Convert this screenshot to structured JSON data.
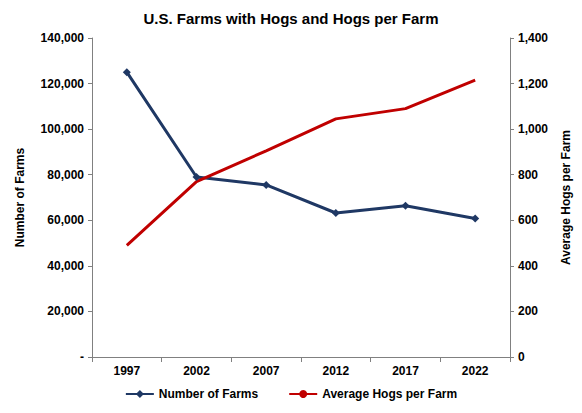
{
  "chart_data": {
    "type": "line",
    "title": "U.S. Farms with Hogs and Hogs per Farm",
    "y_label": "Number of Farms",
    "y2_label": "Average Hogs per Farm",
    "categories": [
      "1997",
      "2002",
      "2007",
      "2012",
      "2017",
      "2022"
    ],
    "series": [
      {
        "name": "Number of Farms",
        "color": "#1F3864",
        "marker": "diamond",
        "line_style": "solid",
        "values": [
          125000,
          79000,
          75500,
          63200,
          66400,
          60800
        ]
      },
      {
        "name": "Average Hogs per Farm",
        "color": "#C00000",
        "marker": "none",
        "line_style": "solid",
        "axis": "y2",
        "values": [
          490,
          770,
          905,
          1045,
          1090,
          1215
        ]
      }
    ],
    "ylim": [
      0,
      140000
    ],
    "yticks": [
      {
        "value": 0,
        "label": "-"
      },
      {
        "value": 20000,
        "label": "20,000"
      },
      {
        "value": 40000,
        "label": "40,000"
      },
      {
        "value": 60000,
        "label": "60,000"
      },
      {
        "value": 80000,
        "label": "80,000"
      },
      {
        "value": 100000,
        "label": "100,000"
      },
      {
        "value": 120000,
        "label": "120,000"
      },
      {
        "value": 140000,
        "label": "140,000"
      }
    ],
    "y2lim": [
      0,
      1400
    ],
    "y2ticks": [
      0,
      200,
      400,
      600,
      800,
      {
        "value": 1000,
        "label": "1,000"
      },
      {
        "value": 1200,
        "label": "1,200"
      },
      {
        "value": 1400,
        "label": "1,400"
      }
    ],
    "grid": false,
    "legend": "bottom"
  }
}
